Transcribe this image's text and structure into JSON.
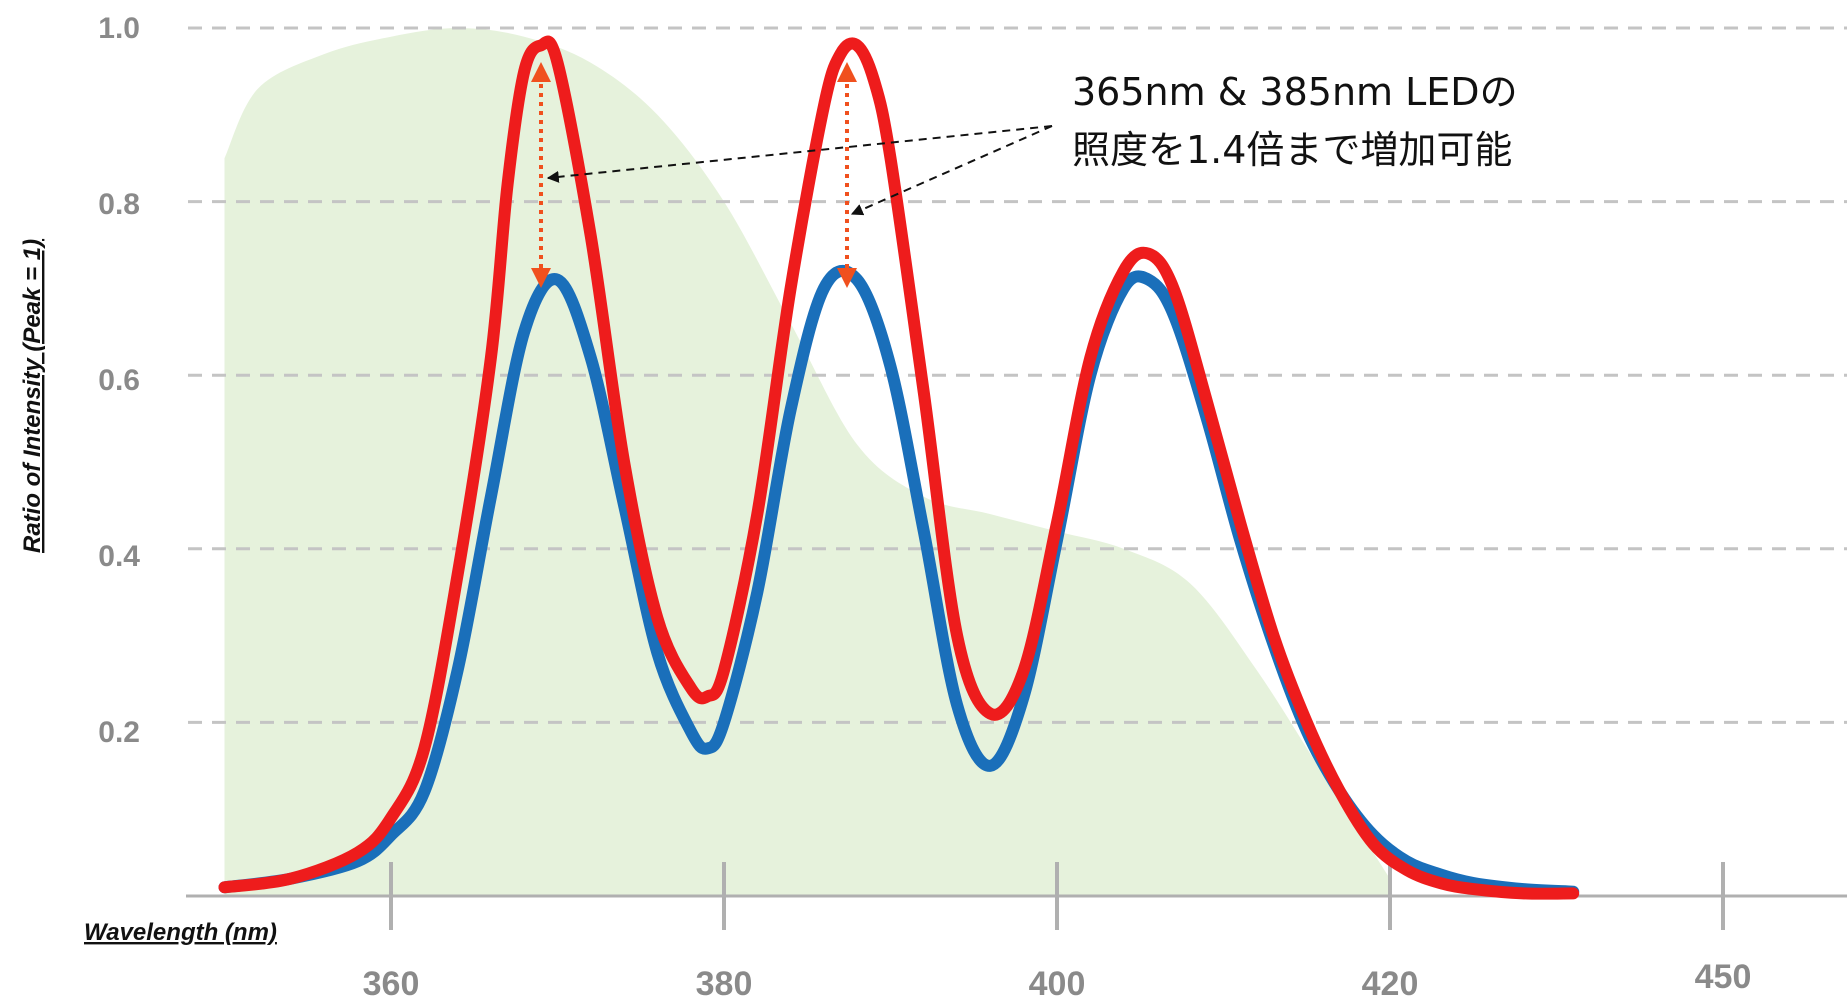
{
  "chart_data": {
    "type": "line",
    "title": "",
    "xlabel": "Wavelength (nm)",
    "ylabel": "Ratio of Intensity (Peak = 1)",
    "y_ticks": [
      "1.0",
      "0.8",
      "0.6",
      "0.4",
      "0.2"
    ],
    "x_ticks": [
      "360",
      "380",
      "400",
      "420",
      "450"
    ],
    "grid": true,
    "area": {
      "color": "#e6f2dc",
      "x": [
        350,
        352,
        356,
        360,
        364,
        368,
        372,
        376,
        380,
        384,
        388,
        392,
        396,
        400,
        404,
        408,
        412,
        416,
        420
      ],
      "y": [
        0.85,
        0.93,
        0.97,
        0.99,
        1.0,
        0.99,
        0.96,
        0.9,
        0.8,
        0.66,
        0.52,
        0.46,
        0.44,
        0.42,
        0.4,
        0.36,
        0.26,
        0.14,
        0.02
      ]
    },
    "series": [
      {
        "color": "#1a6fba",
        "x": [
          350,
          354,
          358,
          360,
          362,
          364,
          366,
          368,
          370,
          372,
          374,
          376,
          378,
          379,
          380,
          382,
          384,
          386,
          388,
          390,
          392,
          394,
          396,
          398,
          400,
          402,
          404,
          405.5,
          407,
          409,
          411,
          413,
          415,
          417,
          419,
          421,
          423,
          425,
          428,
          431
        ],
        "y": [
          0.01,
          0.02,
          0.04,
          0.07,
          0.12,
          0.26,
          0.46,
          0.65,
          0.71,
          0.62,
          0.45,
          0.28,
          0.19,
          0.17,
          0.2,
          0.35,
          0.56,
          0.7,
          0.71,
          0.61,
          0.42,
          0.22,
          0.15,
          0.23,
          0.41,
          0.6,
          0.7,
          0.71,
          0.67,
          0.55,
          0.41,
          0.29,
          0.19,
          0.12,
          0.07,
          0.04,
          0.025,
          0.015,
          0.008,
          0.005
        ]
      },
      {
        "color": "#ee1c1c",
        "x": [
          350,
          354,
          358,
          360,
          362,
          364,
          366,
          367,
          368,
          369,
          370,
          372,
          374,
          376,
          378,
          379,
          380,
          382,
          384,
          386,
          387,
          388,
          389,
          390,
          392,
          394,
          396,
          398,
          400,
          402,
          404,
          405.5,
          407,
          409,
          411,
          413,
          415,
          417,
          419,
          421,
          423,
          425,
          428,
          431
        ],
        "y": [
          0.01,
          0.02,
          0.05,
          0.09,
          0.17,
          0.37,
          0.62,
          0.82,
          0.95,
          0.98,
          0.96,
          0.76,
          0.5,
          0.32,
          0.24,
          0.23,
          0.26,
          0.44,
          0.7,
          0.91,
          0.97,
          0.98,
          0.94,
          0.85,
          0.58,
          0.3,
          0.21,
          0.26,
          0.43,
          0.62,
          0.72,
          0.74,
          0.7,
          0.57,
          0.43,
          0.3,
          0.2,
          0.12,
          0.06,
          0.03,
          0.015,
          0.008,
          0.003,
          0.003
        ]
      }
    ],
    "annotation": {
      "line1": "365nm & 385nm LEDの",
      "line2": "照度を1.4倍まで増加可能"
    }
  }
}
